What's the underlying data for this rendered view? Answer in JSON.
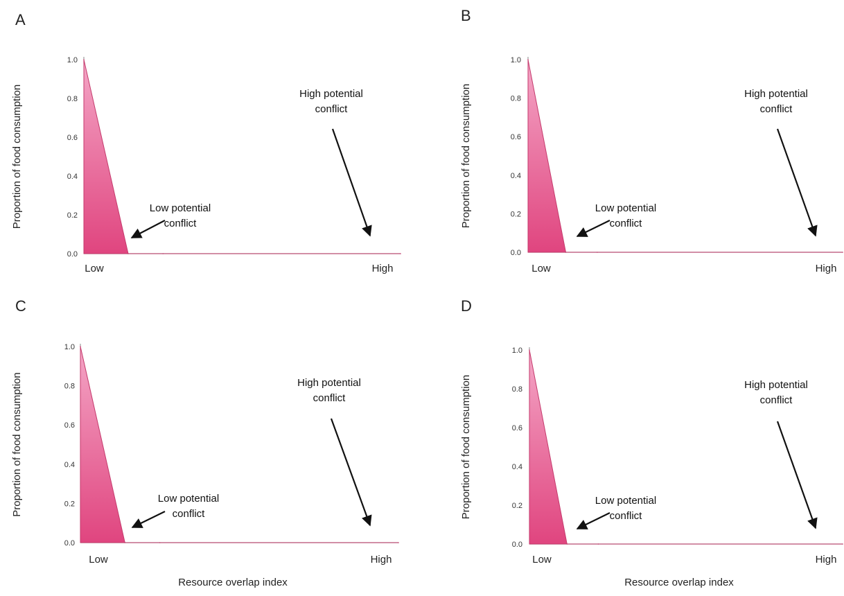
{
  "chart_data": [
    {
      "panel": "A",
      "type": "area",
      "ylabel": "Proportion of food consumption",
      "xlabel": "",
      "x_tick_labels": [
        "Low",
        "High"
      ],
      "ylim": [
        0,
        1
      ],
      "yticks": [
        "0.0",
        "0.2",
        "0.4",
        "0.6",
        "0.8",
        "1.0"
      ],
      "x": [
        0,
        0.14,
        0.25,
        1
      ],
      "values": [
        1.0,
        0.0,
        0.0,
        0.0
      ],
      "annotations": [
        {
          "text": [
            "High potential",
            "conflict"
          ]
        },
        {
          "text": [
            "Low potential",
            "conflict"
          ]
        }
      ]
    },
    {
      "panel": "B",
      "type": "area",
      "ylabel": "Proportion of food consumption",
      "xlabel": "",
      "x_tick_labels": [
        "Low",
        "High"
      ],
      "ylim": [
        0,
        1
      ],
      "yticks": [
        "0.0",
        "0.2",
        "0.4",
        "0.6",
        "0.8",
        "1.0"
      ],
      "x": [
        0,
        0.12,
        0.22,
        1
      ],
      "values": [
        1.0,
        0.0,
        0.0,
        0.0
      ],
      "annotations": [
        {
          "text": [
            "High potential",
            "conflict"
          ]
        },
        {
          "text": [
            "Low potential",
            "conflict"
          ]
        }
      ]
    },
    {
      "panel": "C",
      "type": "area",
      "ylabel": "Proportion of food consumption",
      "xlabel": "Resource overlap index",
      "x_tick_labels": [
        "Low",
        "High"
      ],
      "ylim": [
        0,
        1
      ],
      "yticks": [
        "0.0",
        "0.2",
        "0.4",
        "0.6",
        "0.8",
        "1.0"
      ],
      "x": [
        0,
        0.14,
        0.25,
        1
      ],
      "values": [
        1.0,
        0.0,
        0.0,
        0.0
      ],
      "annotations": [
        {
          "text": [
            "High potential",
            "conflict"
          ]
        },
        {
          "text": [
            "Low potential",
            "conflict"
          ]
        }
      ]
    },
    {
      "panel": "D",
      "type": "area",
      "ylabel": "Proportion of food consumption",
      "xlabel": "Resource overlap index",
      "x_tick_labels": [
        "Low",
        "High"
      ],
      "ylim": [
        0,
        1
      ],
      "yticks": [
        "0.0",
        "0.2",
        "0.4",
        "0.6",
        "0.8",
        "1.0"
      ],
      "x": [
        0,
        0.12,
        0.22,
        1
      ],
      "values": [
        1.0,
        0.0,
        0.0,
        0.0
      ],
      "annotations": [
        {
          "text": [
            "High potential",
            "conflict"
          ]
        },
        {
          "text": [
            "Low potential",
            "conflict"
          ]
        }
      ]
    }
  ],
  "colors": {
    "fill_top": "#f4a6c6",
    "fill_bottom": "#e0457f",
    "edge": "#c43a6c",
    "axis": "#888888"
  }
}
